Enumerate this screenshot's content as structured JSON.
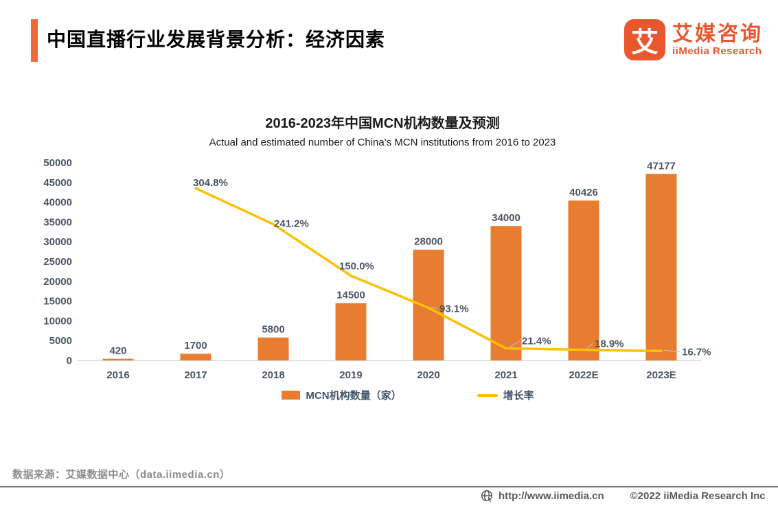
{
  "header": {
    "title": "中国直播行业发展背景分析：经济因素",
    "logo_glyph": "艾",
    "brand_cn": "艾媒咨询",
    "brand_en": "iiMedia Research"
  },
  "chart_data": {
    "type": "bar",
    "title": "2016-2023年中国MCN机构数量及预测",
    "subtitle": "Actual and estimated number of China's MCN institutions from 2016 to 2023",
    "categories": [
      "2016",
      "2017",
      "2018",
      "2019",
      "2020",
      "2021",
      "2022E",
      "2023E"
    ],
    "series": [
      {
        "name": "MCN机构数量（家）",
        "type": "bar",
        "color": "#E87D31",
        "values": [
          420,
          1700,
          5800,
          14500,
          28000,
          34000,
          40426,
          47177
        ]
      },
      {
        "name": "增长率",
        "type": "line",
        "color": "#FFC000",
        "unit": "%",
        "values": [
          null,
          304.8,
          241.2,
          150.0,
          93.1,
          21.4,
          18.9,
          16.7
        ]
      }
    ],
    "y_axis": {
      "min": 0,
      "max": 50000,
      "step": 5000
    },
    "y2_axis": {
      "min": 0,
      "max": 350,
      "unit": "%",
      "visible": false
    },
    "grid": false,
    "legend_position": "bottom"
  },
  "footer": {
    "source": "数据来源：艾媒数据中心（data.iimedia.cn）",
    "url": "http://www.iimedia.cn",
    "copyright": "©2022  iiMedia Research  Inc"
  },
  "colors": {
    "bar": "#E87D31",
    "line": "#FFC000",
    "accent": "#EE6A3C",
    "brand": "#E8572E",
    "chart_text": "#4A5568",
    "muted_text": "#8C8C8C"
  }
}
